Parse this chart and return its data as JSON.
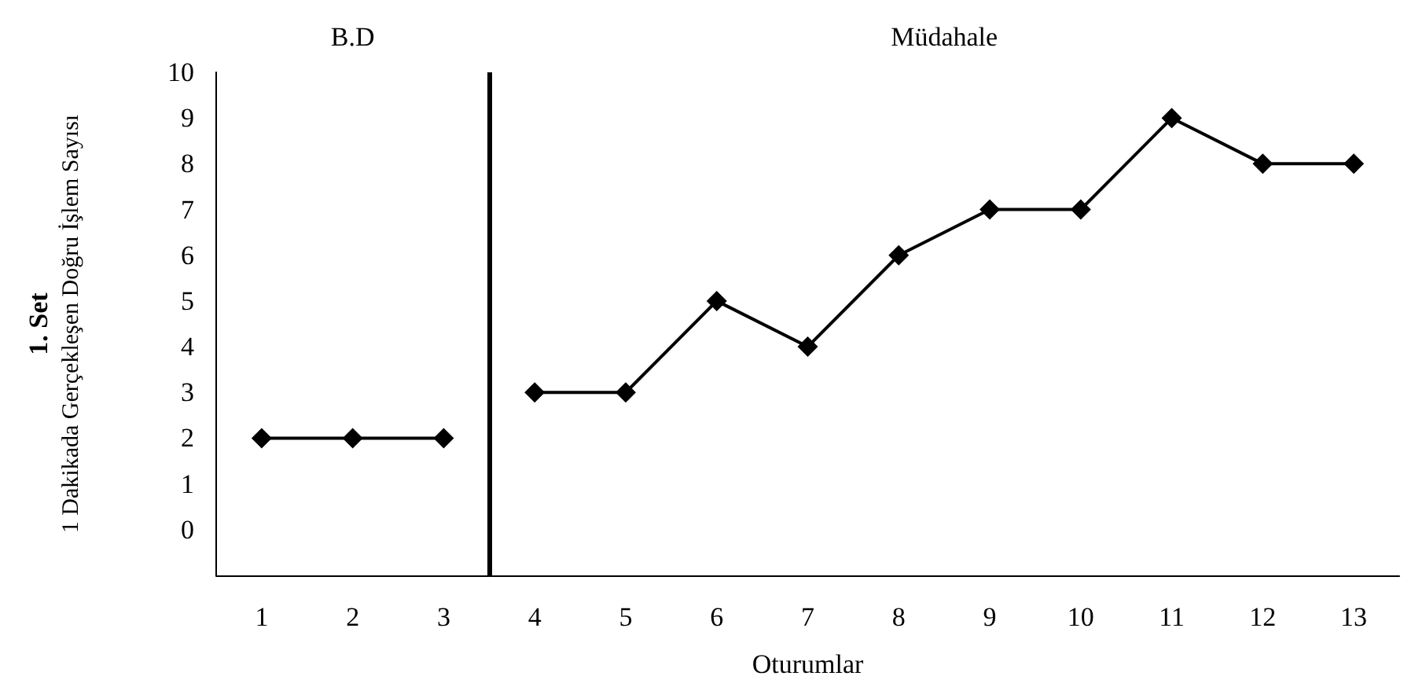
{
  "chart_data": {
    "type": "line",
    "xlabel": "Oturumlar",
    "ylabel": "1. Set\n1 Dakikada Gerçekleşen Doğru İşlem Sayısı",
    "xlim": [
      0.5,
      13.5
    ],
    "xticks": [
      1,
      2,
      3,
      4,
      5,
      6,
      7,
      8,
      9,
      10,
      11,
      12,
      13
    ],
    "ylim": [
      -1,
      10
    ],
    "yticks": [
      0,
      1,
      2,
      3,
      4,
      5,
      6,
      7,
      8,
      9,
      10
    ],
    "series": [
      {
        "color": "#000000",
        "x": [
          1,
          2,
          3
        ],
        "values": [
          2,
          2,
          2
        ]
      },
      {
        "color": "#000000",
        "x": [
          4,
          5,
          6,
          7,
          8,
          9,
          10,
          11,
          12,
          13
        ],
        "values": [
          3,
          3,
          5,
          4,
          6,
          7,
          7,
          9,
          8,
          8
        ]
      }
    ],
    "ref_lines": [
      {
        "axis": "x",
        "value": 3.5,
        "color": "#000000"
      }
    ],
    "annotations": [
      "B.D",
      "Müdahale"
    ],
    "marker": "diamond",
    "line_style": "solid",
    "grid": false
  }
}
